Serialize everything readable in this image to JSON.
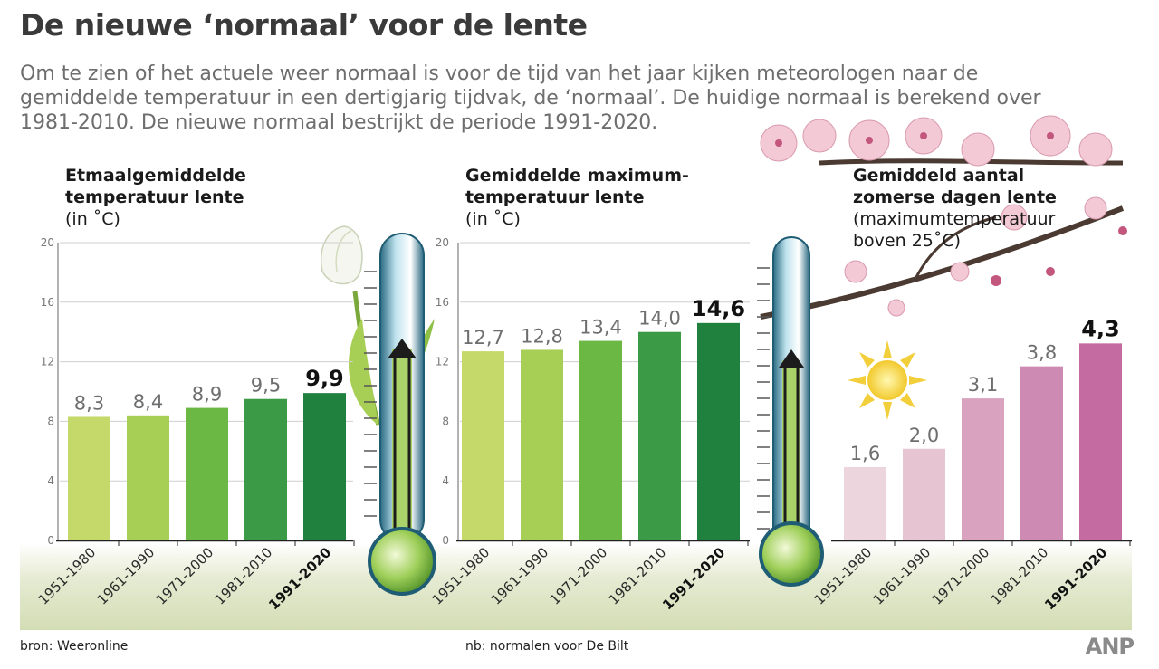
{
  "header": {
    "title": "De nieuwe ‘normaal’ voor de lente",
    "intro": "Om te zien of het actuele weer normaal is voor de tijd van het jaar kijken meteorologen naar de gemiddelde temperatuur in een dertigjarig tijdvak, de ‘normaal’. De huidige normaal is berekend over 1981-2010. De nieuwe normaal bestrijkt de periode 1991-2020."
  },
  "footer": {
    "source": "bron:  Weeronline",
    "note": "nb: normalen voor De Bilt",
    "logo": "ANP"
  },
  "chart_data": [
    {
      "type": "bar",
      "title": "Etmaalgemiddelde temperatuur lente",
      "title_lines": [
        "Etmaalgemiddelde",
        "temperatuur lente"
      ],
      "subtitle": "(in ˚C)",
      "subtitle_lines": [
        "(in ˚C)"
      ],
      "categories": [
        "1951-1980",
        "1961-1990",
        "1971-2000",
        "1981-2010",
        "1991-2020"
      ],
      "values": [
        8.3,
        8.4,
        8.9,
        9.5,
        9.9
      ],
      "value_labels": [
        "8,3",
        "8,4",
        "8,9",
        "9,5",
        "9,9"
      ],
      "highlight_index": 4,
      "ylim": [
        0,
        20
      ],
      "yticks": [
        0,
        4,
        8,
        12,
        16,
        20
      ],
      "ytick_labels": [
        "0",
        "4",
        "8",
        "12",
        "16",
        "20"
      ],
      "grid": true,
      "colors": [
        "#c5d96a",
        "#a7cf55",
        "#6bb845",
        "#3a9a45",
        "#20813e"
      ]
    },
    {
      "type": "bar",
      "title": "Gemiddelde maximumtemperatuur lente",
      "title_lines": [
        "Gemiddelde maximum-",
        "temperatuur lente"
      ],
      "subtitle": "(in ˚C)",
      "subtitle_lines": [
        "(in ˚C)"
      ],
      "categories": [
        "1951-1980",
        "1961-1990",
        "1971-2000",
        "1981-2010",
        "1991-2020"
      ],
      "values": [
        12.7,
        12.8,
        13.4,
        14.0,
        14.6
      ],
      "value_labels": [
        "12,7",
        "12,8",
        "13,4",
        "14,0",
        "14,6"
      ],
      "highlight_index": 4,
      "ylim": [
        0,
        20
      ],
      "yticks": [
        0,
        4,
        8,
        12,
        16,
        20
      ],
      "ytick_labels": [
        "0",
        "4",
        "8",
        "12",
        "16",
        "20"
      ],
      "grid": true,
      "colors": [
        "#c5d96a",
        "#a7cf55",
        "#6bb845",
        "#3a9a45",
        "#20813e"
      ]
    },
    {
      "type": "bar",
      "title": "Gemiddeld aantal zomerse dagen lente",
      "title_lines": [
        "Gemiddeld aantal",
        "zomerse dagen lente"
      ],
      "subtitle": "(maximumtemperatuur boven 25˚C)",
      "subtitle_lines": [
        "(maximumtemperatuur",
        "boven 25˚C)"
      ],
      "categories": [
        "1951-1980",
        "1961-1990",
        "1971-2000",
        "1981-2010",
        "1991-2020"
      ],
      "values": [
        1.6,
        2.0,
        3.1,
        3.8,
        4.3
      ],
      "value_labels": [
        "1,6",
        "2,0",
        "3,1",
        "3,8",
        "4,3"
      ],
      "highlight_index": 4,
      "ylim": [
        0,
        6.5
      ],
      "grid": false,
      "colors": [
        "#ecd5dc",
        "#e6c4d2",
        "#d9a3bf",
        "#cd8ab3",
        "#c46ba2"
      ]
    }
  ]
}
